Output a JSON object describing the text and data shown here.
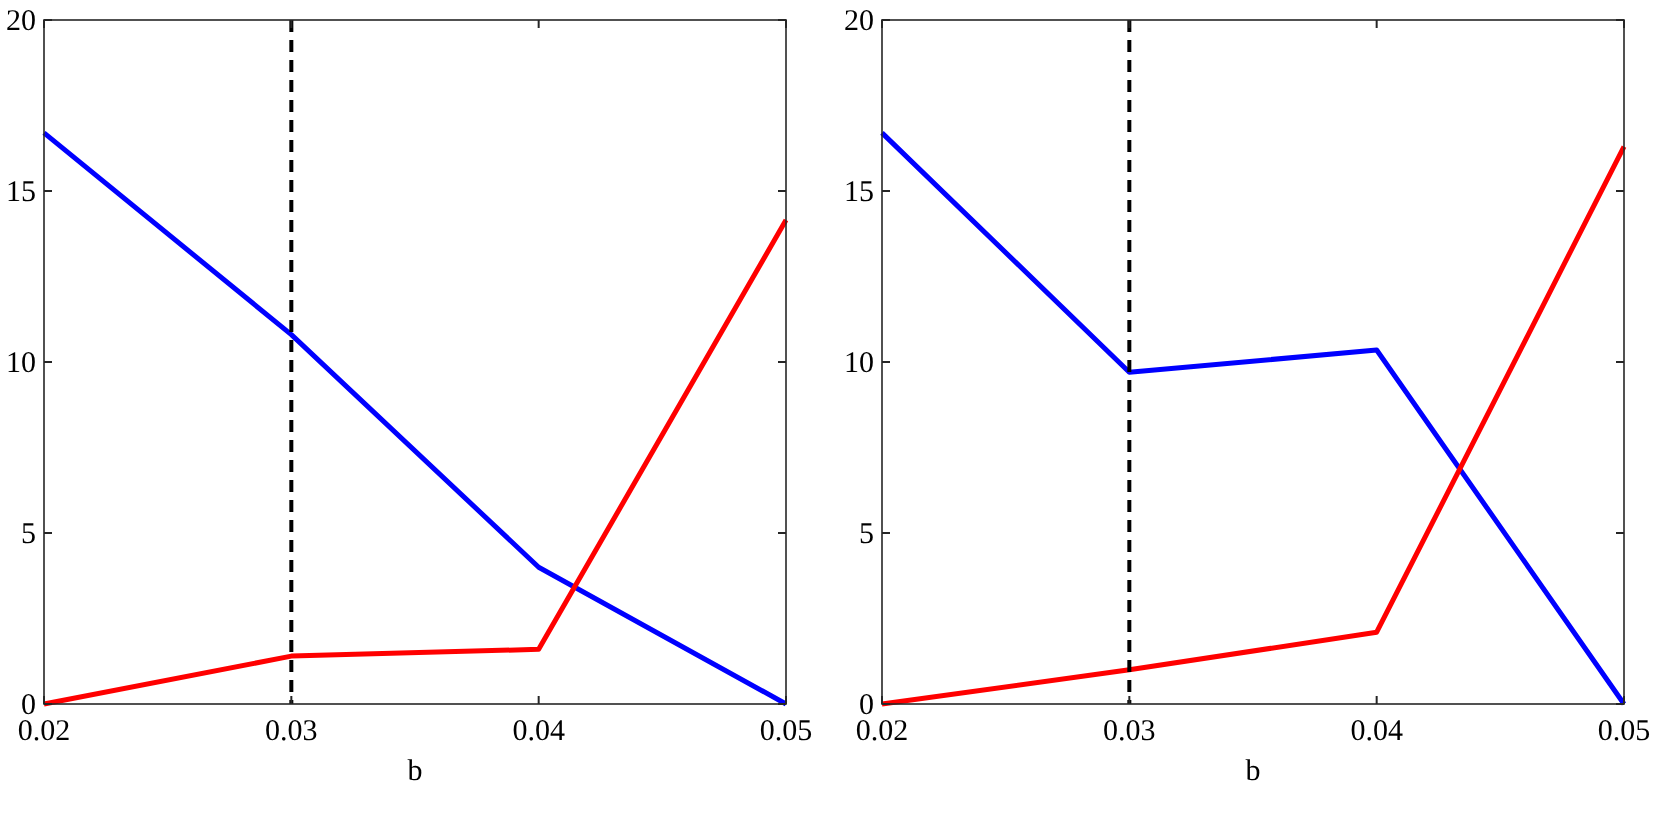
{
  "chart_data": [
    {
      "type": "line",
      "xlabel": "b",
      "x": [
        0.02,
        0.03,
        0.04,
        0.05
      ],
      "xlim": [
        0.02,
        0.05
      ],
      "xticks": [
        0.02,
        0.03,
        0.04,
        0.05
      ],
      "ylim": [
        0,
        20
      ],
      "yticks": [
        0,
        5,
        10,
        15,
        20
      ],
      "series": [
        {
          "color": "#0000ff",
          "values": [
            16.7,
            10.8,
            4.0,
            0
          ]
        },
        {
          "color": "#ff0000",
          "values": [
            0,
            1.4,
            1.6,
            14.15
          ]
        }
      ],
      "ref_lines": [
        {
          "axis": "x",
          "value": 0.03,
          "color": "#000000",
          "line_style": "dashed"
        }
      ],
      "grid": false
    },
    {
      "type": "line",
      "xlabel": "b",
      "x": [
        0.02,
        0.03,
        0.04,
        0.05
      ],
      "xlim": [
        0.02,
        0.05
      ],
      "xticks": [
        0.02,
        0.03,
        0.04,
        0.05
      ],
      "ylim": [
        0,
        20
      ],
      "yticks": [
        0,
        5,
        10,
        15,
        20
      ],
      "series": [
        {
          "color": "#0000ff",
          "values": [
            16.7,
            9.7,
            10.35,
            0
          ]
        },
        {
          "color": "#ff0000",
          "values": [
            0,
            1.0,
            2.1,
            16.3
          ]
        }
      ],
      "ref_lines": [
        {
          "axis": "x",
          "value": 0.03,
          "color": "#000000",
          "line_style": "dashed"
        }
      ],
      "grid": false
    }
  ]
}
